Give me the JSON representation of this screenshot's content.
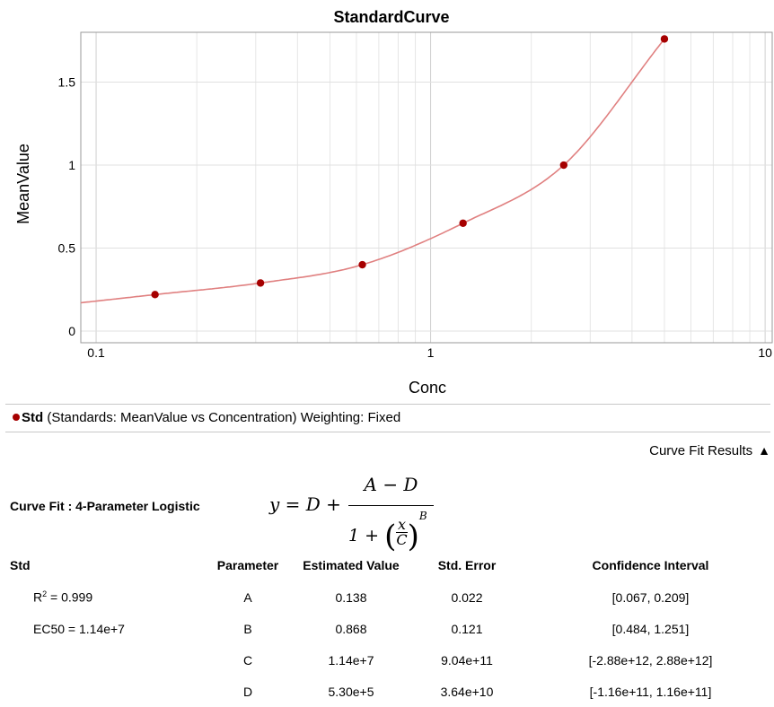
{
  "chart_data": {
    "type": "scatter",
    "title": "StandardCurve",
    "xlabel": "Conc",
    "ylabel": "MeanValue",
    "xscale": "log",
    "xlim": [
      0.09,
      10.5
    ],
    "ylim": [
      -0.07,
      1.8
    ],
    "x_ticks": [
      "0.1",
      "1",
      "10"
    ],
    "y_ticks": [
      "0",
      "0.5",
      "1",
      "1.5"
    ],
    "grid": true,
    "series": [
      {
        "name": "Std",
        "type": "scatter",
        "color": "#a60000",
        "points": [
          {
            "x": 0.15,
            "y": 0.22
          },
          {
            "x": 0.31,
            "y": 0.29
          },
          {
            "x": 0.625,
            "y": 0.4
          },
          {
            "x": 1.25,
            "y": 0.65
          },
          {
            "x": 2.5,
            "y": 1.0
          },
          {
            "x": 5.0,
            "y": 1.76
          }
        ]
      },
      {
        "type": "line",
        "color": "#e08080",
        "fit_curve_params": {
          "A": 0.138,
          "B": 0.868,
          "C": 11400000.0,
          "D": 530000.0
        }
      }
    ]
  },
  "legend": {
    "name": "Std",
    "description": "(Standards: MeanValue vs Concentration) Weighting: Fixed"
  },
  "results_header": {
    "label": "Curve Fit Results",
    "icon": "triangle-up-icon"
  },
  "curve_fit": {
    "label": "Curve Fit : 4-Parameter Logistic",
    "formula": {
      "lhs": "y = D +",
      "numerator": "A − D",
      "den_prefix": "1 +",
      "x": "x",
      "c": "C",
      "exp": "B"
    }
  },
  "results_table": {
    "headers": [
      "Std",
      "Parameter",
      "Estimated Value",
      "Std. Error",
      "Confidence Interval"
    ],
    "r2_label": "R",
    "r2_exp": "2",
    "r2_value": " = 0.999",
    "ec50": "EC50 = 1.14e+7",
    "rows": [
      {
        "param": "A",
        "value": "0.138",
        "error": "0.022",
        "ci": "[0.067, 0.209]"
      },
      {
        "param": "B",
        "value": "0.868",
        "error": "0.121",
        "ci": "[0.484, 1.251]"
      },
      {
        "param": "C",
        "value": "1.14e+7",
        "error": "9.04e+11",
        "ci": "[-2.88e+12, 2.88e+12]"
      },
      {
        "param": "D",
        "value": "5.30e+5",
        "error": "3.64e+10",
        "ci": "[-1.16e+11, 1.16e+11]"
      }
    ]
  }
}
